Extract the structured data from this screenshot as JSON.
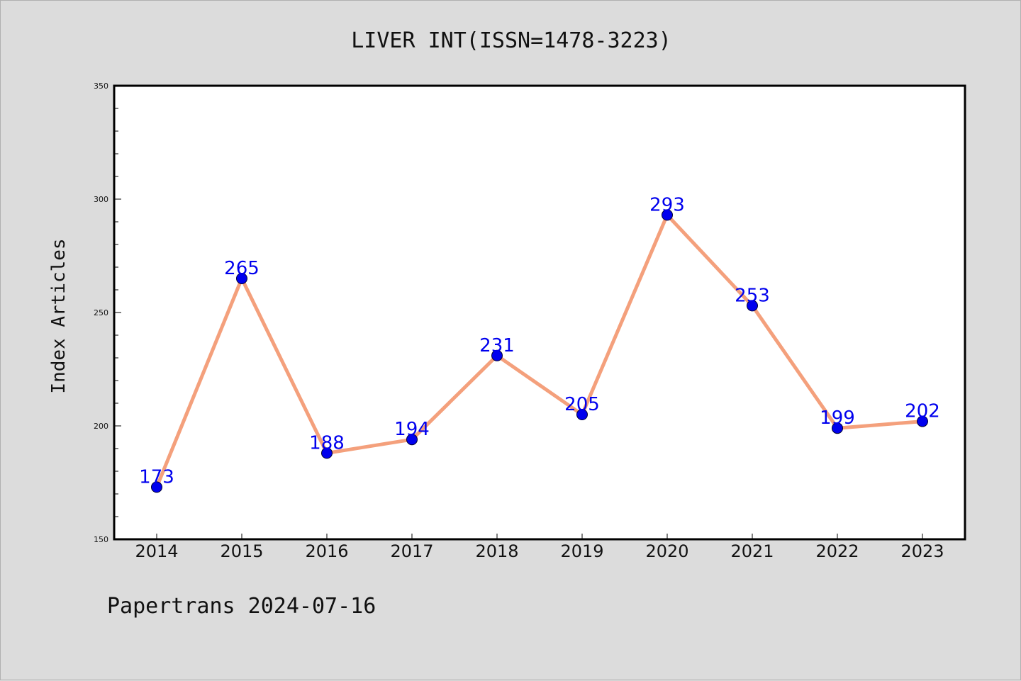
{
  "chart_data": {
    "type": "line",
    "title": "LIVER INT(ISSN=1478-3223)",
    "xlabel": "",
    "ylabel": "Index Articles",
    "categories": [
      "2014",
      "2015",
      "2016",
      "2017",
      "2018",
      "2019",
      "2020",
      "2021",
      "2022",
      "2023"
    ],
    "values": [
      173,
      265,
      188,
      194,
      231,
      205,
      293,
      253,
      199,
      202
    ],
    "ylim": [
      150,
      350
    ],
    "yticks": [
      150,
      200,
      250,
      300,
      350
    ],
    "grid": false,
    "legend": "none",
    "data_labels": true,
    "colors": {
      "line": "#f4a07c",
      "marker": "#0000ee",
      "label": "#0000ee",
      "background": "#dcdcdc",
      "plot_background": "#ffffff"
    }
  },
  "footer": {
    "text": "Papertrans 2024-07-16"
  }
}
